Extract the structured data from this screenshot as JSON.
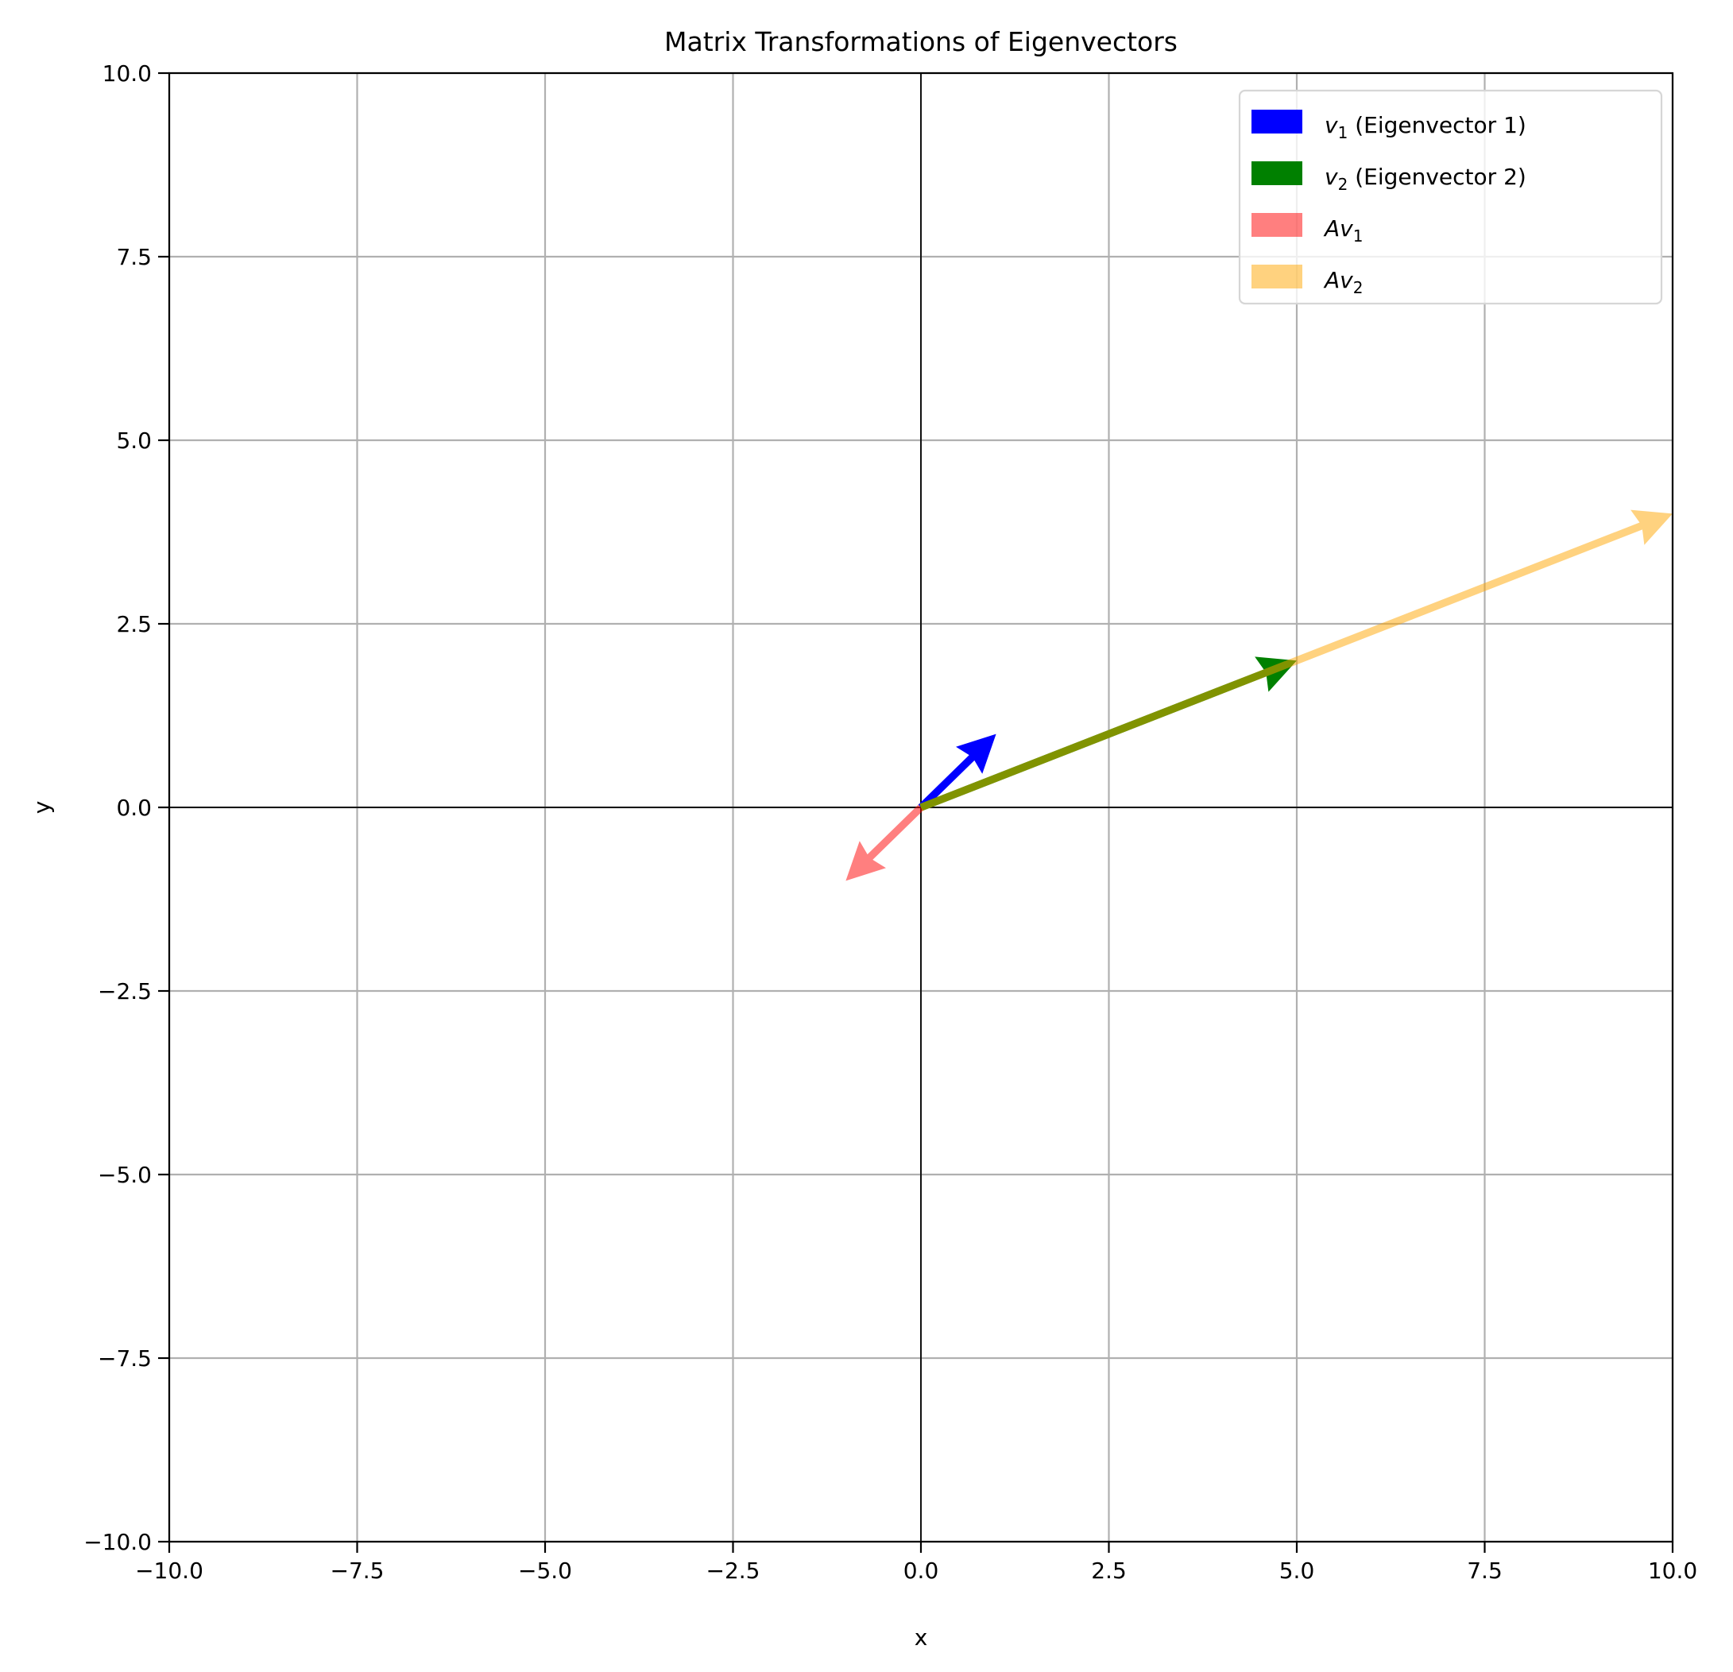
{
  "chart_data": {
    "type": "quiver",
    "title": "Matrix Transformations of Eigenvectors",
    "xlabel": "x",
    "ylabel": "y",
    "xlim": [
      -10,
      10
    ],
    "ylim": [
      -10,
      10
    ],
    "grid": true,
    "xticks": [
      -10,
      -7.5,
      -5,
      -2.5,
      0,
      2.5,
      5,
      7.5,
      10
    ],
    "yticks": [
      -10,
      -7.5,
      -5,
      -2.5,
      0,
      2.5,
      5,
      7.5,
      10
    ],
    "xtick_labels": [
      "−10.0",
      "−7.5",
      "−5.0",
      "−2.5",
      "0.0",
      "2.5",
      "5.0",
      "7.5",
      "10.0"
    ],
    "ytick_labels": [
      "−10.0",
      "−7.5",
      "−5.0",
      "−2.5",
      "0.0",
      "2.5",
      "5.0",
      "7.5",
      "10.0"
    ],
    "legend_position": "top-right",
    "series": [
      {
        "name": "v1 (Eigenvector 1)",
        "sym": "v",
        "sub": "1",
        "rest": " (Eigenvector 1)",
        "origin": [
          0,
          0
        ],
        "vector": [
          1,
          1
        ],
        "color": "#0000ff",
        "alpha": 1
      },
      {
        "name": "v2 (Eigenvector 2)",
        "sym": "v",
        "sub": "2",
        "rest": " (Eigenvector 2)",
        "origin": [
          0,
          0
        ],
        "vector": [
          5,
          2
        ],
        "color": "#008000",
        "alpha": 1
      },
      {
        "name": "Av1",
        "sym": "Av",
        "sub": "1",
        "rest": "",
        "origin": [
          0,
          0
        ],
        "vector": [
          -1,
          -1
        ],
        "color": "#ff0000",
        "alpha": 0.5
      },
      {
        "name": "Av2",
        "sym": "Av",
        "sub": "2",
        "rest": "",
        "origin": [
          0,
          0
        ],
        "vector": [
          10,
          4
        ],
        "color": "#ffa500",
        "alpha": 0.5
      }
    ]
  }
}
